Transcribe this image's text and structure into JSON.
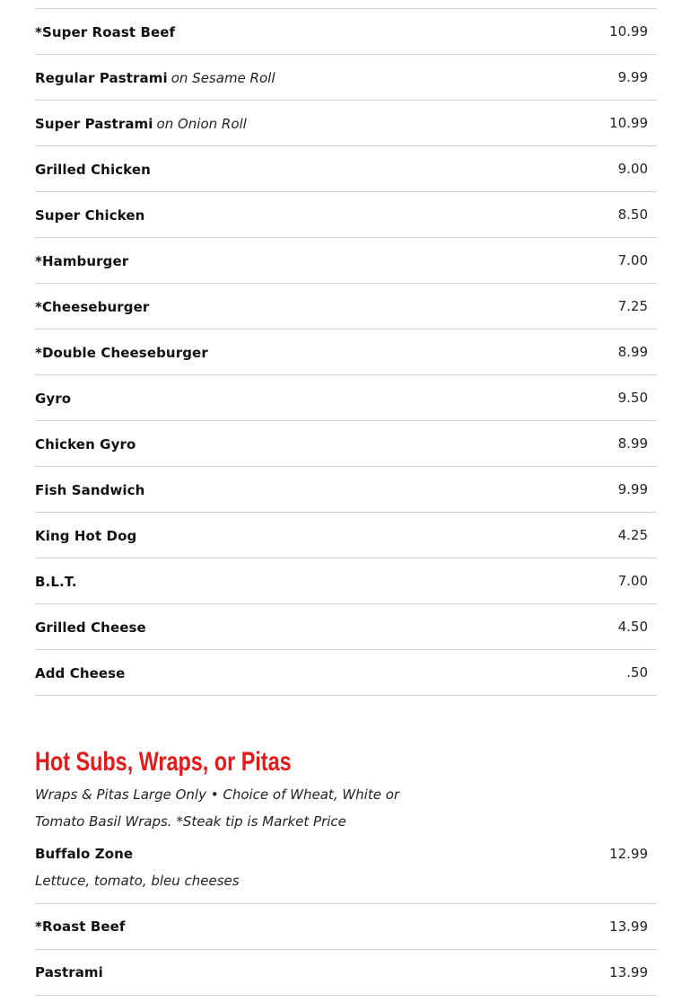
{
  "items": [
    {
      "name": "*Super Roast Beef",
      "note": "",
      "price": "10.99"
    },
    {
      "name": "Regular Pastrami",
      "note": "on Sesame Roll",
      "price": "9.99"
    },
    {
      "name": "Super Pastrami",
      "note": "on Onion Roll",
      "price": "10.99"
    },
    {
      "name": "Grilled Chicken",
      "note": "",
      "price": "9.00"
    },
    {
      "name": "Super Chicken",
      "note": "",
      "price": "8.50"
    },
    {
      "name": "*Hamburger",
      "note": "",
      "price": "7.00"
    },
    {
      "name": "*Cheeseburger",
      "note": "",
      "price": "7.25"
    },
    {
      "name": "*Double Cheeseburger",
      "note": "",
      "price": "8.99"
    },
    {
      "name": "Gyro",
      "note": "",
      "price": "9.50"
    },
    {
      "name": "Chicken Gyro",
      "note": "",
      "price": "8.99"
    },
    {
      "name": "Fish Sandwich",
      "note": "",
      "price": "9.99"
    },
    {
      "name": "King Hot Dog",
      "note": "",
      "price": "4.25"
    },
    {
      "name": "B.L.T.",
      "note": "",
      "price": "7.00"
    },
    {
      "name": "Grilled Cheese",
      "note": "",
      "price": "4.50"
    },
    {
      "name": "Add Cheese",
      "note": "",
      "price": ".50"
    }
  ],
  "section": {
    "title": "Hot Subs, Wraps, or Pitas",
    "intro": "Wraps & Pitas Large Only • Choice of Wheat, White or Tomato Basil Wraps. *Steak tip is Market Price",
    "title_color": "#e31b1b",
    "items": [
      {
        "name": "Buffalo Zone",
        "desc": "Lettuce, tomato, bleu cheeses",
        "price": "12.99"
      },
      {
        "name": "*Roast Beef",
        "price": "13.99"
      },
      {
        "name": "Pastrami",
        "price": "13.99"
      }
    ]
  }
}
